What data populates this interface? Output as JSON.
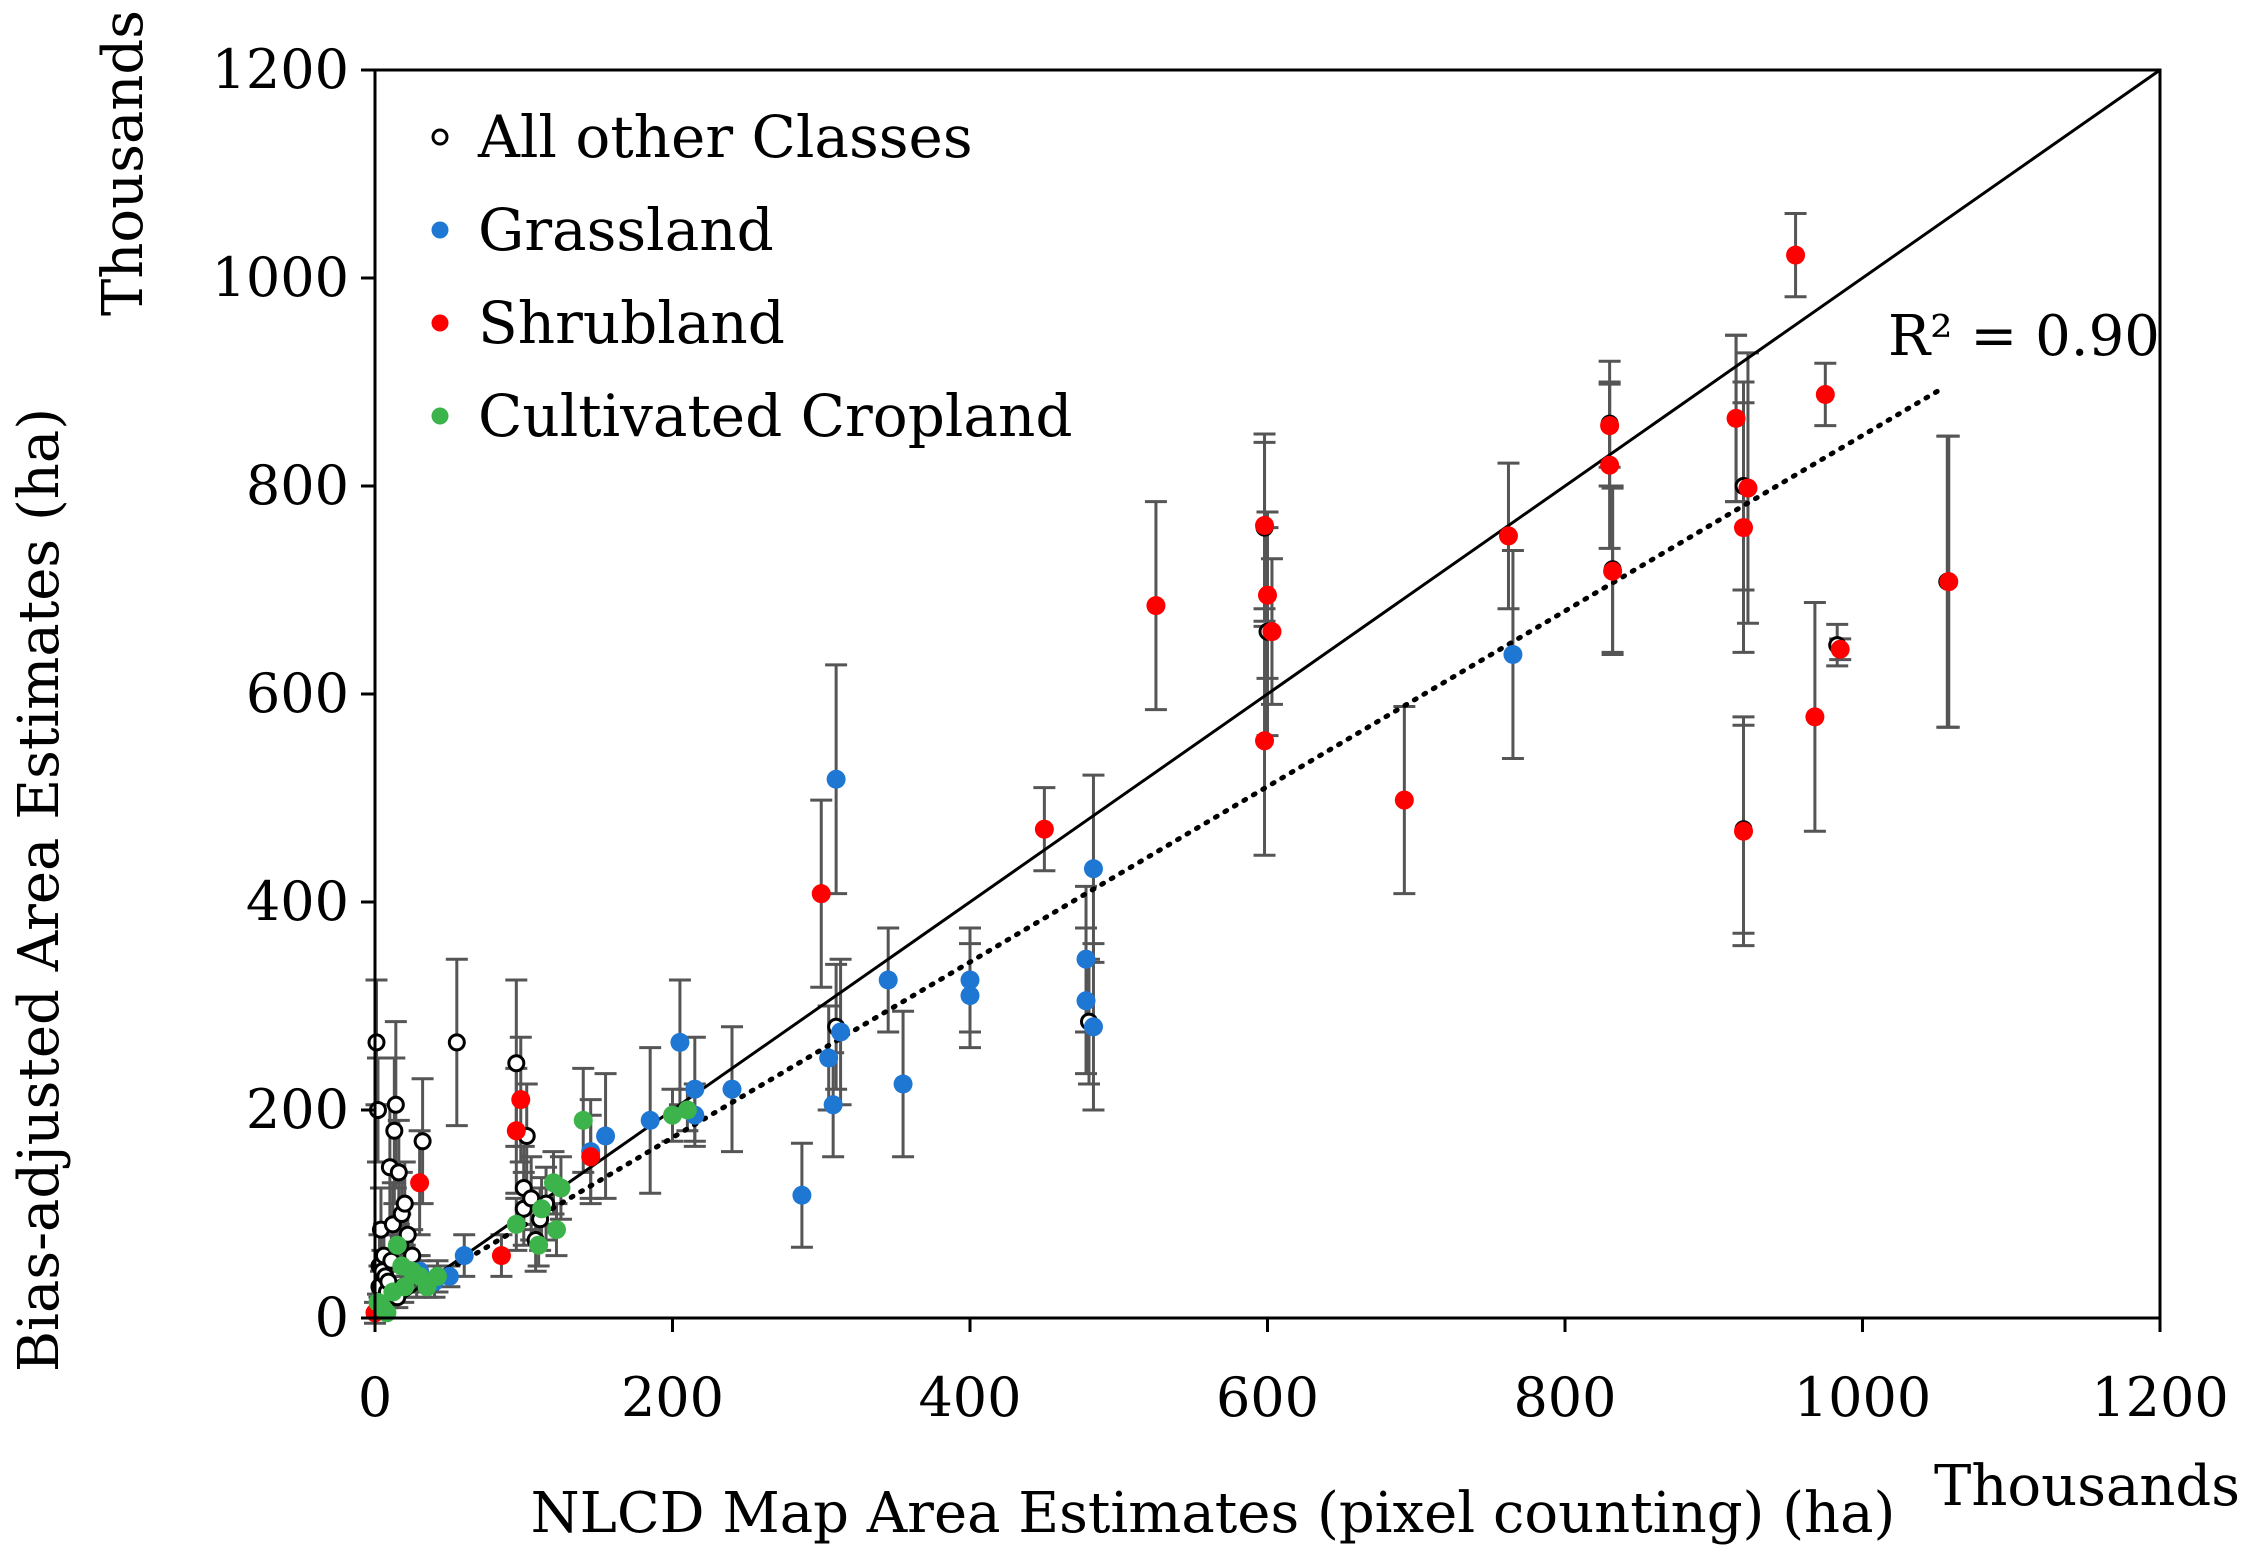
{
  "chart_data": {
    "type": "scatter",
    "title": "",
    "xlabel": "NLCD Map Area Estimates (pixel counting) (ha)",
    "ylabel": "Bias-adjusted Area Estimates (ha)",
    "x_unit_label": "Thousands",
    "y_unit_label": "Thousands",
    "xlim": [
      0,
      1200
    ],
    "ylim": [
      0,
      1200
    ],
    "x_ticks": [
      0,
      200,
      400,
      600,
      800,
      1000,
      1200
    ],
    "y_ticks": [
      0,
      200,
      400,
      600,
      800,
      1000,
      1200
    ],
    "x_tick_labels": [
      "0",
      "200",
      "400",
      "600",
      "800",
      "1000",
      "1200"
    ],
    "y_tick_labels": [
      "0",
      "200",
      "400",
      "600",
      "800",
      "1000",
      "1200"
    ],
    "grid": false,
    "legend_position": "top-left",
    "annotation": "R² = 0.90",
    "reference_line": {
      "name": "1:1 line",
      "x": [
        0,
        1200
      ],
      "y": [
        0,
        1200
      ]
    },
    "trend_line": {
      "name": "linear fit",
      "x": [
        30,
        1055
      ],
      "y": [
        30,
        895
      ]
    },
    "series": [
      {
        "name": "All other Classes",
        "color": "#000000",
        "points": [
          [
            1,
            265,
            60
          ],
          [
            2,
            200,
            50
          ],
          [
            3,
            30,
            20
          ],
          [
            3,
            50,
            30
          ],
          [
            4,
            85,
            40
          ],
          [
            5,
            45,
            20
          ],
          [
            6,
            60,
            30
          ],
          [
            7,
            40,
            20
          ],
          [
            8,
            25,
            15
          ],
          [
            9,
            35,
            15
          ],
          [
            10,
            145,
            60
          ],
          [
            11,
            55,
            25
          ],
          [
            12,
            90,
            40
          ],
          [
            13,
            180,
            70
          ],
          [
            14,
            205,
            80
          ],
          [
            15,
            20,
            10
          ],
          [
            16,
            140,
            50
          ],
          [
            17,
            70,
            30
          ],
          [
            18,
            100,
            40
          ],
          [
            19,
            30,
            15
          ],
          [
            20,
            110,
            40
          ],
          [
            22,
            80,
            30
          ],
          [
            25,
            60,
            25
          ],
          [
            28,
            40,
            20
          ],
          [
            32,
            170,
            60
          ],
          [
            55,
            265,
            80
          ],
          [
            95,
            245,
            80
          ],
          [
            100,
            125,
            40
          ],
          [
            100,
            105,
            35
          ],
          [
            102,
            175,
            50
          ],
          [
            105,
            115,
            40
          ],
          [
            108,
            75,
            30
          ],
          [
            111,
            95,
            30
          ],
          [
            115,
            110,
            35
          ],
          [
            310,
            280,
            60
          ],
          [
            480,
            285,
            60
          ],
          [
            830,
            860,
            60
          ],
          [
            832,
            720,
            80
          ],
          [
            920,
            470,
            100
          ],
          [
            920,
            800,
            100
          ],
          [
            1057,
            708,
            140
          ],
          [
            983,
            647,
            20
          ],
          [
            598,
            760,
            90
          ],
          [
            600,
            660,
            100
          ],
          [
            915,
            865,
            80
          ]
        ]
      },
      {
        "name": "Grassland",
        "color": "#1f77d4",
        "points": [
          [
            30,
            45,
            15
          ],
          [
            40,
            35,
            15
          ],
          [
            50,
            40,
            10
          ],
          [
            60,
            60,
            20
          ],
          [
            145,
            160,
            50
          ],
          [
            155,
            175,
            60
          ],
          [
            185,
            190,
            70
          ],
          [
            205,
            265,
            60
          ],
          [
            215,
            220,
            50
          ],
          [
            215,
            195,
            30
          ],
          [
            240,
            220,
            60
          ],
          [
            287,
            118,
            50
          ],
          [
            305,
            250,
            50
          ],
          [
            308,
            205,
            50
          ],
          [
            310,
            518,
            110
          ],
          [
            313,
            275,
            70
          ],
          [
            345,
            325,
            50
          ],
          [
            355,
            225,
            70
          ],
          [
            400,
            310,
            50
          ],
          [
            400,
            325,
            50
          ],
          [
            478,
            345,
            70
          ],
          [
            478,
            305,
            70
          ],
          [
            483,
            432,
            90
          ],
          [
            483,
            280,
            80
          ],
          [
            765,
            638,
            100
          ]
        ]
      },
      {
        "name": "Shrubland",
        "color": "#ff0000",
        "points": [
          [
            0,
            5,
            10
          ],
          [
            30,
            130,
            50
          ],
          [
            85,
            60,
            20
          ],
          [
            95,
            180,
            60
          ],
          [
            98,
            210,
            60
          ],
          [
            145,
            155,
            40
          ],
          [
            300,
            408,
            90
          ],
          [
            450,
            470,
            40
          ],
          [
            525,
            685,
            100
          ],
          [
            598,
            555,
            110
          ],
          [
            598,
            762,
            80
          ],
          [
            600,
            695,
            80
          ],
          [
            603,
            660,
            70
          ],
          [
            692,
            498,
            90
          ],
          [
            762,
            752,
            70
          ],
          [
            830,
            858,
            40
          ],
          [
            830,
            820,
            80
          ],
          [
            832,
            718,
            80
          ],
          [
            915,
            865,
            80
          ],
          [
            920,
            468,
            110
          ],
          [
            920,
            760,
            120
          ],
          [
            923,
            798,
            130
          ],
          [
            955,
            1022,
            40
          ],
          [
            968,
            578,
            110
          ],
          [
            975,
            888,
            30
          ],
          [
            985,
            643,
            10
          ],
          [
            1058,
            708,
            140
          ]
        ]
      },
      {
        "name": "Cultivated Cropland",
        "color": "#3cb44b",
        "points": [
          [
            2,
            15,
            8
          ],
          [
            5,
            10,
            5
          ],
          [
            8,
            5,
            5
          ],
          [
            12,
            25,
            10
          ],
          [
            15,
            70,
            20
          ],
          [
            18,
            50,
            15
          ],
          [
            20,
            30,
            10
          ],
          [
            25,
            45,
            15
          ],
          [
            30,
            40,
            15
          ],
          [
            35,
            30,
            10
          ],
          [
            42,
            40,
            15
          ],
          [
            95,
            90,
            25
          ],
          [
            110,
            70,
            20
          ],
          [
            112,
            105,
            30
          ],
          [
            120,
            130,
            30
          ],
          [
            122,
            85,
            25
          ],
          [
            125,
            125,
            30
          ],
          [
            140,
            190,
            50
          ],
          [
            200,
            195,
            25
          ],
          [
            210,
            200,
            20
          ]
        ]
      }
    ]
  }
}
